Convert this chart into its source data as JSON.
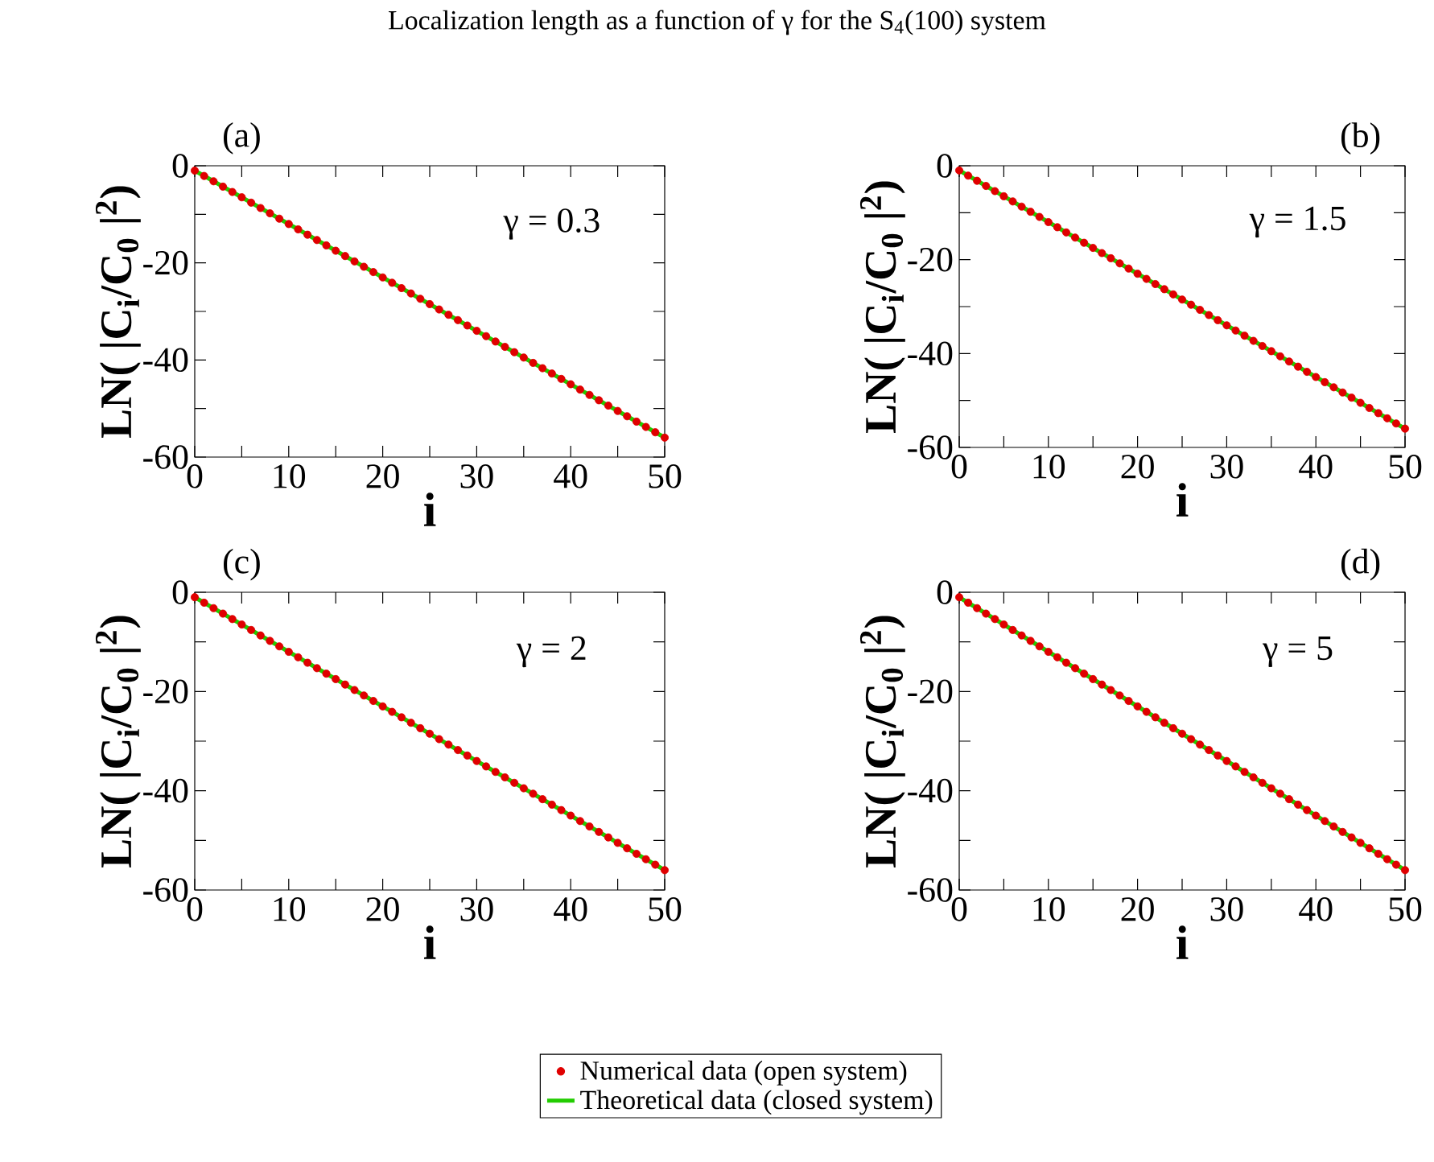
{
  "chart_data": [
    {
      "type": "scatter",
      "title": "Localization length as a function of γ for the S$_{4}$(100) system",
      "xlabel": "i",
      "ylabel": "LN( |C$_{i}$/C$_{0}$ |$^{2}$)",
      "annotations": [
        "(a)",
        "γ = 0.3"
      ],
      "xlim": [
        0,
        50
      ],
      "ylim": [
        -60,
        0
      ],
      "xticks": [
        0,
        {
          "value": 5,
          "label": null
        },
        10,
        {
          "value": 15,
          "label": null
        },
        20,
        {
          "value": 25,
          "label": null
        },
        30,
        {
          "value": 35,
          "label": null
        },
        40,
        {
          "value": 45,
          "label": null
        },
        50
      ],
      "yticks": [
        {
          "value": -60,
          "label": "-60"
        },
        {
          "value": -50,
          "label": null
        },
        {
          "value": -40,
          "label": "-40"
        },
        {
          "value": -30,
          "label": null
        },
        {
          "value": -20,
          "label": "-20"
        },
        {
          "value": -10,
          "label": null
        },
        0
      ],
      "series": [
        {
          "marker": "circle",
          "color": "#e00000",
          "x": [
            0,
            1,
            2,
            3,
            4,
            5,
            6,
            7,
            8,
            9,
            10,
            11,
            12,
            13,
            14,
            15,
            16,
            17,
            18,
            19,
            20,
            21,
            22,
            23,
            24,
            25,
            26,
            27,
            28,
            29,
            30,
            31,
            32,
            33,
            34,
            35,
            36,
            37,
            38,
            39,
            40,
            41,
            42,
            43,
            44,
            45,
            46,
            47,
            48,
            49,
            50
          ],
          "values": [
            -1,
            -2.1,
            -3.2,
            -4.3,
            -5.4,
            -6.5,
            -7.6,
            -8.7,
            -9.8,
            -10.9,
            -12,
            -13.1,
            -14.2,
            -15.3,
            -16.4,
            -17.5,
            -18.6,
            -19.7,
            -20.8,
            -21.9,
            -23,
            -24.1,
            -25.2,
            -26.3,
            -27.4,
            -28.5,
            -29.6,
            -30.7,
            -31.8,
            -32.9,
            -34,
            -35.1,
            -36.2,
            -37.3,
            -38.4,
            -39.5,
            -40.6,
            -41.7,
            -42.8,
            -43.9,
            -45,
            -46.1,
            -47.2,
            -48.3,
            -49.4,
            -50.5,
            -51.6,
            -52.7,
            -53.8,
            -54.9,
            -56
          ]
        },
        {
          "type": "line",
          "color": "#22cc00",
          "x": [
            0,
            50
          ],
          "values": [
            -1,
            -56
          ]
        }
      ]
    },
    {
      "type": "scatter",
      "xlabel": "i",
      "ylabel": "LN( |C$_{i}$/C$_{0}$ |$^{2}$)",
      "annotations": [
        "(b)",
        "γ = 1.5"
      ],
      "xlim": [
        0,
        50
      ],
      "ylim": [
        -60,
        0
      ],
      "xticks": [
        0,
        {
          "value": 5,
          "label": null
        },
        10,
        {
          "value": 15,
          "label": null
        },
        20,
        {
          "value": 25,
          "label": null
        },
        30,
        {
          "value": 35,
          "label": null
        },
        40,
        {
          "value": 45,
          "label": null
        },
        50
      ],
      "yticks": [
        {
          "value": -60,
          "label": "-60"
        },
        {
          "value": -50,
          "label": null
        },
        {
          "value": -40,
          "label": "-40"
        },
        {
          "value": -30,
          "label": null
        },
        {
          "value": -20,
          "label": "-20"
        },
        {
          "value": -10,
          "label": null
        },
        0
      ],
      "series": [
        {
          "marker": "circle",
          "color": "#e00000",
          "x": [
            0,
            1,
            2,
            3,
            4,
            5,
            6,
            7,
            8,
            9,
            10,
            11,
            12,
            13,
            14,
            15,
            16,
            17,
            18,
            19,
            20,
            21,
            22,
            23,
            24,
            25,
            26,
            27,
            28,
            29,
            30,
            31,
            32,
            33,
            34,
            35,
            36,
            37,
            38,
            39,
            40,
            41,
            42,
            43,
            44,
            45,
            46,
            47,
            48,
            49,
            50
          ],
          "values": [
            -1,
            -2.1,
            -3.2,
            -4.3,
            -5.4,
            -6.5,
            -7.6,
            -8.7,
            -9.8,
            -10.9,
            -12,
            -13.1,
            -14.2,
            -15.3,
            -16.4,
            -17.5,
            -18.6,
            -19.7,
            -20.8,
            -21.9,
            -23,
            -24.1,
            -25.2,
            -26.3,
            -27.4,
            -28.5,
            -29.6,
            -30.7,
            -31.8,
            -32.9,
            -34,
            -35.1,
            -36.2,
            -37.3,
            -38.4,
            -39.5,
            -40.6,
            -41.7,
            -42.8,
            -43.9,
            -45,
            -46.1,
            -47.2,
            -48.3,
            -49.4,
            -50.5,
            -51.6,
            -52.7,
            -53.8,
            -54.9,
            -56
          ]
        },
        {
          "type": "line",
          "color": "#22cc00",
          "x": [
            0,
            50
          ],
          "values": [
            -1,
            -56
          ]
        }
      ]
    },
    {
      "type": "scatter",
      "xlabel": "i",
      "ylabel": "LN( |C$_{i}$/C$_{0}$ |$^{2}$)",
      "annotations": [
        "(c)",
        "γ = 2"
      ],
      "xlim": [
        0,
        50
      ],
      "ylim": [
        -60,
        0
      ],
      "xticks": [
        0,
        {
          "value": 5,
          "label": null
        },
        10,
        {
          "value": 15,
          "label": null
        },
        20,
        {
          "value": 25,
          "label": null
        },
        30,
        {
          "value": 35,
          "label": null
        },
        40,
        {
          "value": 45,
          "label": null
        },
        50
      ],
      "yticks": [
        {
          "value": -60,
          "label": "-60"
        },
        {
          "value": -50,
          "label": null
        },
        {
          "value": -40,
          "label": "-40"
        },
        {
          "value": -30,
          "label": null
        },
        {
          "value": -20,
          "label": "-20"
        },
        {
          "value": -10,
          "label": null
        },
        0
      ],
      "series": [
        {
          "marker": "circle",
          "color": "#e00000",
          "x": [
            0,
            1,
            2,
            3,
            4,
            5,
            6,
            7,
            8,
            9,
            10,
            11,
            12,
            13,
            14,
            15,
            16,
            17,
            18,
            19,
            20,
            21,
            22,
            23,
            24,
            25,
            26,
            27,
            28,
            29,
            30,
            31,
            32,
            33,
            34,
            35,
            36,
            37,
            38,
            39,
            40,
            41,
            42,
            43,
            44,
            45,
            46,
            47,
            48,
            49,
            50
          ],
          "values": [
            -1,
            -2.1,
            -3.2,
            -4.3,
            -5.4,
            -6.5,
            -7.6,
            -8.7,
            -9.8,
            -10.9,
            -12,
            -13.1,
            -14.2,
            -15.3,
            -16.4,
            -17.5,
            -18.6,
            -19.7,
            -20.8,
            -21.9,
            -23,
            -24.1,
            -25.2,
            -26.3,
            -27.4,
            -28.5,
            -29.6,
            -30.7,
            -31.8,
            -32.9,
            -34,
            -35.1,
            -36.2,
            -37.3,
            -38.4,
            -39.5,
            -40.6,
            -41.7,
            -42.8,
            -43.9,
            -45,
            -46.1,
            -47.2,
            -48.3,
            -49.4,
            -50.5,
            -51.6,
            -52.7,
            -53.8,
            -54.9,
            -56
          ]
        },
        {
          "type": "line",
          "color": "#22cc00",
          "x": [
            0,
            50
          ],
          "values": [
            -1,
            -56
          ]
        }
      ]
    },
    {
      "type": "scatter",
      "xlabel": "i",
      "ylabel": "LN( |C$_{i}$/C$_{0}$ |$^{2}$)",
      "annotations": [
        "(d)",
        "γ = 5"
      ],
      "xlim": [
        0,
        50
      ],
      "ylim": [
        -60,
        0
      ],
      "legend": "bottom",
      "xticks": [
        0,
        {
          "value": 5,
          "label": null
        },
        10,
        {
          "value": 15,
          "label": null
        },
        20,
        {
          "value": 25,
          "label": null
        },
        30,
        {
          "value": 35,
          "label": null
        },
        40,
        {
          "value": 45,
          "label": null
        },
        50
      ],
      "yticks": [
        {
          "value": -60,
          "label": "-60"
        },
        {
          "value": -50,
          "label": null
        },
        {
          "value": -40,
          "label": "-40"
        },
        {
          "value": -30,
          "label": null
        },
        {
          "value": -20,
          "label": "-20"
        },
        {
          "value": -10,
          "label": null
        },
        0
      ],
      "series": [
        {
          "name": "Numerical data (open system)",
          "marker": "circle",
          "color": "#e00000",
          "x": [
            0,
            1,
            2,
            3,
            4,
            5,
            6,
            7,
            8,
            9,
            10,
            11,
            12,
            13,
            14,
            15,
            16,
            17,
            18,
            19,
            20,
            21,
            22,
            23,
            24,
            25,
            26,
            27,
            28,
            29,
            30,
            31,
            32,
            33,
            34,
            35,
            36,
            37,
            38,
            39,
            40,
            41,
            42,
            43,
            44,
            45,
            46,
            47,
            48,
            49,
            50
          ],
          "values": [
            -1,
            -2.1,
            -3.2,
            -4.3,
            -5.4,
            -6.5,
            -7.6,
            -8.7,
            -9.8,
            -10.9,
            -12,
            -13.1,
            -14.2,
            -15.3,
            -16.4,
            -17.5,
            -18.6,
            -19.7,
            -20.8,
            -21.9,
            -23,
            -24.1,
            -25.2,
            -26.3,
            -27.4,
            -28.5,
            -29.6,
            -30.7,
            -31.8,
            -32.9,
            -34,
            -35.1,
            -36.2,
            -37.3,
            -38.4,
            -39.5,
            -40.6,
            -41.7,
            -42.8,
            -43.9,
            -45,
            -46.1,
            -47.2,
            -48.3,
            -49.4,
            -50.5,
            -51.6,
            -52.7,
            -53.8,
            -54.9,
            -56
          ]
        },
        {
          "type": "line",
          "name": "Theoretical data (closed system)",
          "color": "#22cc00",
          "x": [
            0,
            50
          ],
          "values": [
            -1,
            -56
          ]
        }
      ]
    }
  ]
}
